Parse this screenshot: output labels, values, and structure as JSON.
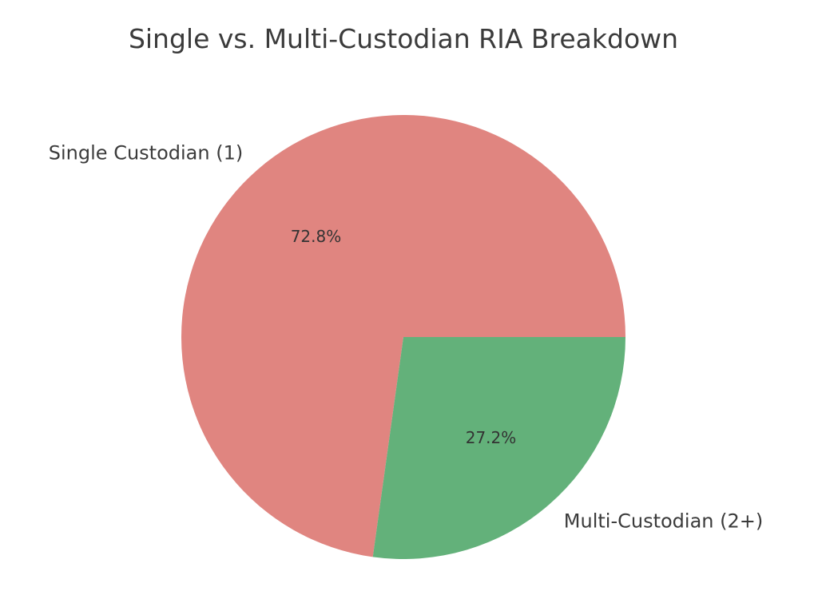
{
  "chart_data": {
    "type": "pie",
    "title": "Single vs. Multi-Custodian RIA Breakdown",
    "slices": [
      {
        "label": "Single Custodian (1)",
        "value": 72.8,
        "pct_label": "72.8%",
        "color": "#e08580"
      },
      {
        "label": "Multi-Custodian (2+)",
        "value": 27.2,
        "pct_label": "27.2%",
        "color": "#63b17a"
      }
    ],
    "start_angle_deg": 0,
    "direction": "counterclockwise",
    "legend": "none"
  }
}
